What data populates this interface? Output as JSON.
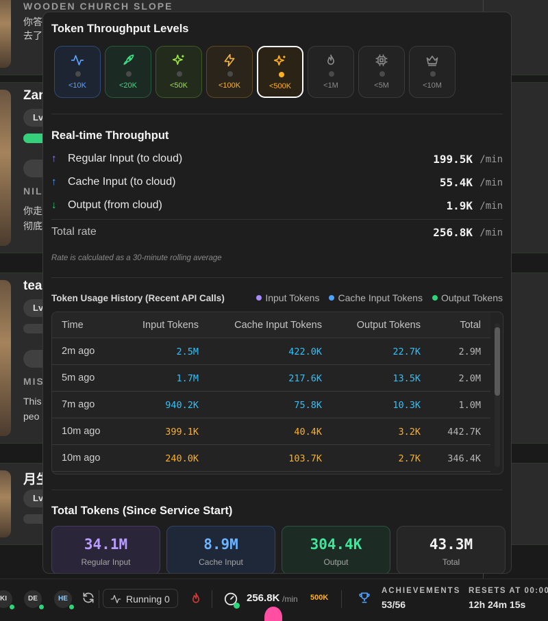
{
  "background": {
    "cards": [
      {
        "name": "",
        "label": "WOODEN CHURCH SLOPE",
        "lines": [
          "你答",
          "去了"
        ]
      },
      {
        "name": "Zar",
        "pill": "Lv",
        "label": "NIL",
        "lines": [
          "你走",
          "彻底"
        ]
      },
      {
        "name": "tea",
        "pill": "Lv",
        "label": "MIS",
        "lines": [
          "This",
          "peo"
        ]
      },
      {
        "name": "月生",
        "pill": "Lv"
      }
    ]
  },
  "levels": {
    "title": "Token Throughput Levels",
    "items": [
      {
        "label": "<10K",
        "icon": "activity-icon"
      },
      {
        "label": "<20K",
        "icon": "rocket-icon"
      },
      {
        "label": "<50K",
        "icon": "sparkles-icon"
      },
      {
        "label": "<100K",
        "icon": "zap-icon"
      },
      {
        "label": "<500K",
        "icon": "sparkles-icon"
      },
      {
        "label": "<1M",
        "icon": "flame-icon"
      },
      {
        "label": "<5M",
        "icon": "cpu-icon"
      },
      {
        "label": "<10M",
        "icon": "crown-icon"
      }
    ],
    "active_label": "<500K"
  },
  "realtime": {
    "title": "Real-time Throughput",
    "rows": [
      {
        "label": "Regular Input (to cloud)",
        "value": "199.5K",
        "unit": "/min",
        "arrow": "↑",
        "color": "#9b7cff"
      },
      {
        "label": "Cache Input (to cloud)",
        "value": "55.4K",
        "unit": "/min",
        "arrow": "↑",
        "color": "#4ea2ff"
      },
      {
        "label": "Output (from cloud)",
        "value": "1.9K",
        "unit": "/min",
        "arrow": "↓",
        "color": "#2ed47a"
      }
    ],
    "total": {
      "label": "Total rate",
      "value": "256.8K",
      "unit": "/min"
    },
    "note": "Rate is calculated as a 30-minute rolling average"
  },
  "history": {
    "title": "Token Usage History (Recent API Calls)",
    "legend": [
      {
        "label": "Input Tokens",
        "color": "#a78bfa"
      },
      {
        "label": "Cache Input Tokens",
        "color": "#4ea2ff"
      },
      {
        "label": "Output Tokens",
        "color": "#2ed47a"
      }
    ],
    "columns": [
      "Time",
      "Input Tokens",
      "Cache Input Tokens",
      "Output Tokens",
      "Total"
    ],
    "rows": [
      {
        "time": "2m ago",
        "input": "2.5M",
        "cache": "422.0K",
        "output": "22.7K",
        "total": "2.9M",
        "tone": "cyan"
      },
      {
        "time": "5m ago",
        "input": "1.7M",
        "cache": "217.6K",
        "output": "13.5K",
        "total": "2.0M",
        "tone": "cyan"
      },
      {
        "time": "7m ago",
        "input": "940.2K",
        "cache": "75.8K",
        "output": "10.3K",
        "total": "1.0M",
        "tone": "cyan"
      },
      {
        "time": "10m ago",
        "input": "399.1K",
        "cache": "40.4K",
        "output": "3.2K",
        "total": "442.7K",
        "tone": "orange"
      },
      {
        "time": "10m ago",
        "input": "240.0K",
        "cache": "103.7K",
        "output": "2.7K",
        "total": "346.4K",
        "tone": "orange"
      }
    ]
  },
  "totals": {
    "title": "Total Tokens (Since Service Start)",
    "items": [
      {
        "value": "34.1M",
        "label": "Regular Input"
      },
      {
        "value": "8.9M",
        "label": "Cache Input"
      },
      {
        "value": "304.4K",
        "label": "Output"
      },
      {
        "value": "43.3M",
        "label": "Total"
      }
    ]
  },
  "statusbar": {
    "avatars": [
      "KI",
      "DE",
      "HE"
    ],
    "running": "Running 0",
    "rate": "256.8K",
    "rate_unit": "/min",
    "level_badge": "500K",
    "achievements_title": "ACHIEVEMENTS",
    "achievements_value": "53/56",
    "resets_title": "RESETS AT 00:00",
    "resets_value": "12h 24m 15s"
  }
}
